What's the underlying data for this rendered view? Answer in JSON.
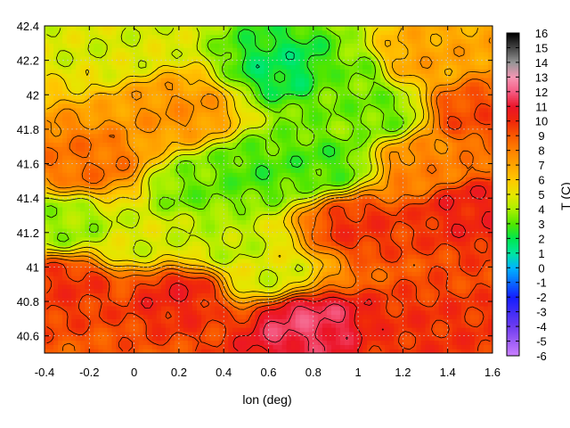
{
  "chart_data": {
    "type": "heatmap",
    "title": "",
    "xlabel": "lon (deg)",
    "ylabel": "",
    "colorbar_label": "T (C)",
    "xlim": [
      -0.4,
      1.6
    ],
    "ylim": [
      40.5,
      42.4
    ],
    "x_ticks": [
      -0.4,
      -0.2,
      0,
      0.2,
      0.4,
      0.6,
      0.8,
      1,
      1.2,
      1.4,
      1.6
    ],
    "x_tick_labels": [
      "-0.4",
      "-0.2",
      "0",
      "0.2",
      "0.4",
      "0.6",
      "0.8",
      "1",
      "1.2",
      "1.4",
      "1.6"
    ],
    "y_ticks": [
      40.6,
      40.8,
      41,
      41.2,
      41.4,
      41.6,
      41.8,
      42,
      42.2,
      42.4
    ],
    "y_tick_labels": [
      "40.6",
      "40.8",
      "41",
      "41.2",
      "41.4",
      "41.6",
      "41.8",
      "42",
      "42.2",
      "42.4"
    ],
    "colorbar_range": [
      -6,
      16
    ],
    "colorbar_ticks": [
      16,
      15,
      14,
      13,
      12,
      11,
      10,
      9,
      8,
      7,
      6,
      5,
      4,
      3,
      2,
      1,
      0,
      -1,
      -2,
      -3,
      -4,
      -5,
      -6
    ],
    "colorbar_tick_labels": [
      "16",
      "15",
      "14",
      "13",
      "12",
      "11",
      "10",
      "9",
      "8",
      "7",
      "6",
      "5",
      "4",
      "3",
      "2",
      "1",
      "0",
      "-1",
      "-2",
      "-3",
      "-4",
      "-5",
      "-6"
    ],
    "grid": true,
    "contours": true,
    "field_summary": [
      {
        "lon": 0.55,
        "lat": 41.55,
        "value": 2.5
      },
      {
        "lon": 0.3,
        "lat": 41.45,
        "value": 3
      },
      {
        "lon": 0.85,
        "lat": 41.6,
        "value": 2.5
      },
      {
        "lon": 0.7,
        "lat": 42.15,
        "value": 1.5
      },
      {
        "lon": 0.95,
        "lat": 42.1,
        "value": 3
      },
      {
        "lon": 1.1,
        "lat": 41.9,
        "value": 3
      },
      {
        "lon": 0.4,
        "lat": 41.15,
        "value": 4
      },
      {
        "lon": 0.6,
        "lat": 40.95,
        "value": 4.5
      },
      {
        "lon": -0.1,
        "lat": 42.3,
        "value": 4.5
      },
      {
        "lon": -0.3,
        "lat": 41.25,
        "value": 3.5
      },
      {
        "lon": 0.05,
        "lat": 41.15,
        "value": 4.5
      },
      {
        "lon": -0.3,
        "lat": 40.9,
        "value": 10
      },
      {
        "lon": 0.2,
        "lat": 40.85,
        "value": 10.5
      },
      {
        "lon": 1.0,
        "lat": 41.25,
        "value": 10
      },
      {
        "lon": 1.5,
        "lat": 41.35,
        "value": 10.5
      },
      {
        "lon": 1.3,
        "lat": 40.6,
        "value": 10
      },
      {
        "lon": 1.5,
        "lat": 41.9,
        "value": 9.5
      },
      {
        "lon": 0.75,
        "lat": 40.7,
        "value": 12
      },
      {
        "lon": 0.2,
        "lat": 41.9,
        "value": 7.5
      },
      {
        "lon": 1.3,
        "lat": 42.2,
        "value": 7
      },
      {
        "lon": -0.2,
        "lat": 41.6,
        "value": 8.5
      },
      {
        "lon": 1.3,
        "lat": 41.6,
        "value": 8
      }
    ],
    "base_value": 7.5
  }
}
